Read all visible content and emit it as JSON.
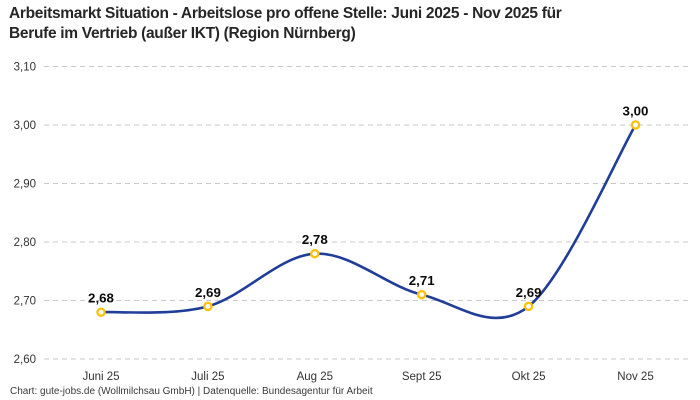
{
  "page": {
    "title_line1": "Arbeitsmarkt Situation - Arbeitslose pro offene Stelle: Juni 2025 - Nov 2025 für",
    "title_line2": "Berufe im Vertrieb (außer IKT) (Region Nürnberg)",
    "footer": "Chart: gute-jobs.de (Wollmilchsau GmbH) | Datenquelle: Bundesagentur für Arbeit"
  },
  "chart_data": {
    "type": "line",
    "title": "Arbeitsmarkt Situation - Arbeitslose pro offene Stelle: Juni 2025 - Nov 2025 für Berufe im Vertrieb (außer IKT) (Region Nürnberg)",
    "categories": [
      "Juni 25",
      "Juli 25",
      "Aug 25",
      "Sept 25",
      "Okt 25",
      "Nov 25"
    ],
    "values": [
      2.68,
      2.69,
      2.78,
      2.71,
      2.69,
      3.0
    ],
    "value_labels": [
      "2,68",
      "2,69",
      "2,78",
      "2,71",
      "2,69",
      "3,00"
    ],
    "y_ticks": [
      3.1,
      3.0,
      2.9,
      2.8,
      2.7,
      2.6
    ],
    "y_tick_labels": [
      "3,10",
      "3,00",
      "2,90",
      "2,80",
      "2,70",
      "2,60"
    ],
    "ylim": [
      2.6,
      3.1
    ],
    "xlabel": "",
    "ylabel": "",
    "grid": "horizontal-dashed",
    "legend": "none",
    "smooth": true,
    "colors": {
      "line": "#1f3d99",
      "marker_stroke": "#ffc107",
      "marker_fill": "#ffffff",
      "grid": "#c9c9c9",
      "axis_label": "#333333",
      "data_label": "#0a0a0a"
    }
  }
}
